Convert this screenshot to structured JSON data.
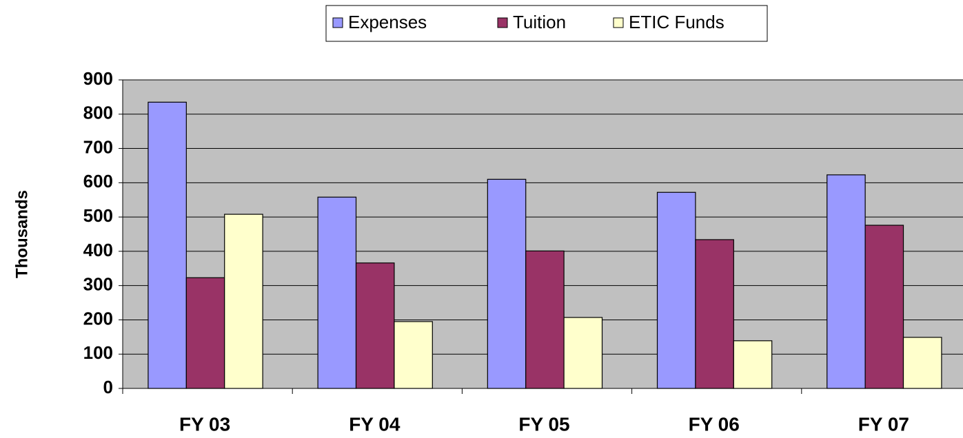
{
  "chart_data": {
    "type": "bar",
    "categories": [
      "FY 03",
      "FY 04",
      "FY 05",
      "FY 06",
      "FY 07"
    ],
    "series": [
      {
        "name": "Expenses",
        "color": "#9999ff",
        "values": [
          835,
          558,
          610,
          572,
          623
        ]
      },
      {
        "name": "Tuition",
        "color": "#993366",
        "values": [
          323,
          366,
          401,
          434,
          476
        ]
      },
      {
        "name": "ETIC Funds",
        "color": "#ffffcc",
        "values": [
          508,
          195,
          207,
          139,
          149
        ]
      }
    ],
    "y_label": "Thousands",
    "ylim": [
      0,
      900
    ],
    "yticks": [
      0,
      100,
      200,
      300,
      400,
      500,
      600,
      700,
      800,
      900
    ],
    "grid": true,
    "legend": "top",
    "plot_background": "#c0c0c0"
  }
}
